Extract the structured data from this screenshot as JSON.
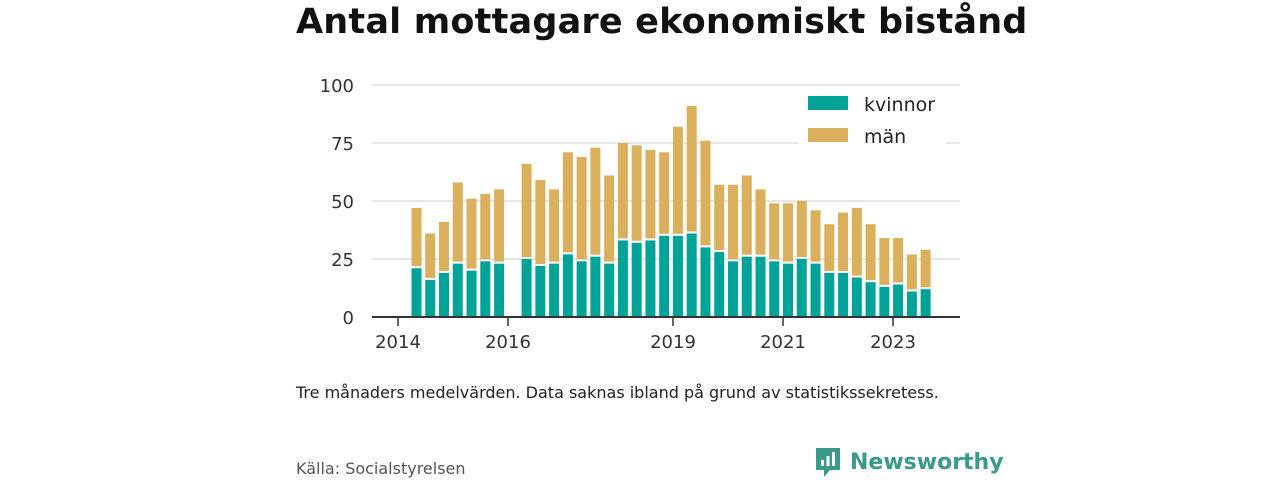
{
  "title": "Antal mottagare ekonomiskt bistånd",
  "note": "Tre månaders medelvärden. Data saknas ibland på grund av statistikssekretess.",
  "source": "Källa: Socialstyrelsen",
  "brand": {
    "name": "Newsworthy",
    "icon": "newsworthy-logo-icon",
    "color": "#3a9a8a"
  },
  "colors": {
    "kvinnor": "#00a398",
    "man": "#dbb05c",
    "axis": "#333333",
    "grid": "#dddddd"
  },
  "chart_data": {
    "type": "bar",
    "stacked": true,
    "ylim": [
      0,
      100
    ],
    "yticks": [
      0,
      25,
      50,
      75,
      100
    ],
    "xticks": [
      "2014",
      "2016",
      "2019",
      "2021",
      "2023"
    ],
    "grid": true,
    "legend_position": "top-right",
    "series": [
      {
        "name": "kvinnor",
        "values": [
          21,
          16,
          19,
          23,
          20,
          24,
          23,
          null,
          25,
          22,
          23,
          27,
          24,
          26,
          23,
          33,
          32,
          33,
          35,
          35,
          36,
          30,
          28,
          24,
          26,
          26,
          24,
          23,
          25,
          23,
          19,
          19,
          17,
          15,
          13,
          14,
          11,
          12
        ]
      },
      {
        "name": "män",
        "values": [
          26,
          20,
          22,
          35,
          31,
          29,
          32,
          null,
          41,
          37,
          32,
          44,
          45,
          47,
          38,
          42,
          42,
          39,
          36,
          47,
          55,
          46,
          29,
          33,
          35,
          29,
          25,
          26,
          25,
          23,
          21,
          26,
          30,
          25,
          21,
          20,
          16,
          17
        ]
      }
    ]
  }
}
